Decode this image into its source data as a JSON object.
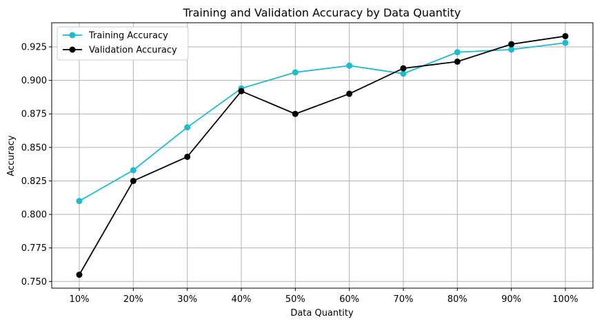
{
  "chart_data": {
    "type": "line",
    "title": "Training and Validation Accuracy by Data Quantity",
    "xlabel": "Data Quantity",
    "ylabel": "Accuracy",
    "categories": [
      "10%",
      "20%",
      "30%",
      "40%",
      "50%",
      "60%",
      "70%",
      "80%",
      "90%",
      "100%"
    ],
    "yticks": [
      "0.750",
      "0.775",
      "0.800",
      "0.825",
      "0.850",
      "0.875",
      "0.900",
      "0.925"
    ],
    "ylim": [
      0.745,
      0.943
    ],
    "grid": true,
    "legend_position": "top-left",
    "series": [
      {
        "name": "Training Accuracy",
        "color": "#17becf",
        "values": [
          0.81,
          0.833,
          0.865,
          0.894,
          0.906,
          0.911,
          0.905,
          0.921,
          0.923,
          0.928
        ]
      },
      {
        "name": "Validation Accuracy",
        "color": "#000000",
        "values": [
          0.755,
          0.825,
          0.843,
          0.892,
          0.875,
          0.89,
          0.909,
          0.914,
          0.927,
          0.933
        ]
      }
    ]
  }
}
